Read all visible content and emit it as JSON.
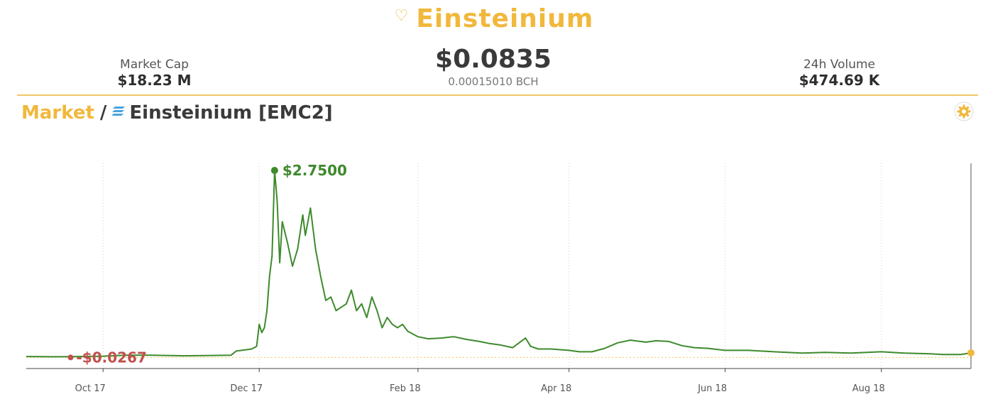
{
  "header": {
    "coin_name": "Einsteinium",
    "favorite_icon": "heart-outline-icon",
    "market_cap_label": "Market Cap",
    "market_cap_value": "$18.23 M",
    "price": "$0.0835",
    "price_bch": "0.00015010 BCH",
    "volume_label": "24h Volume",
    "volume_value": "$474.69 K"
  },
  "breadcrumb": {
    "market": "Market",
    "separator": "/",
    "coin_icon": "einsteinium-logo-icon",
    "coin": "Einsteinium [EMC2]"
  },
  "toolbar": {
    "settings_icon": "gear-icon"
  },
  "colors": {
    "accent": "#f1b83c",
    "line": "#3e8a2c",
    "min": "#c0504d",
    "text": "#3a3a3a"
  },
  "chart_data": {
    "type": "line",
    "x_ticks": [
      "Oct 17",
      "Dec 17",
      "Feb 18",
      "Apr 18",
      "Jun 18",
      "Aug 18"
    ],
    "x_tick_dates": [
      "2017-10-01",
      "2017-12-01",
      "2018-02-01",
      "2018-04-01",
      "2018-06-01",
      "2018-08-01"
    ],
    "x_range": [
      "2017-09-01",
      "2018-09-05"
    ],
    "ylim": [
      0,
      3
    ],
    "grid": "vertical dotted",
    "max_label": "$2.7500",
    "min_label": "$0.0267",
    "max_point": {
      "x": "2017-12-07",
      "y": 2.75
    },
    "min_point": {
      "x": "2017-09-15",
      "y": 0.0267
    },
    "last_point": {
      "x": "2018-09-05",
      "y": 0.0835
    },
    "series": [
      {
        "x": [
          "2017-09-01",
          "2017-09-10",
          "2017-09-15",
          "2017-09-22",
          "2017-10-01",
          "2017-10-10",
          "2017-10-20",
          "2017-11-01",
          "2017-11-10",
          "2017-11-20",
          "2017-11-22",
          "2017-11-26",
          "2017-11-28",
          "2017-11-30",
          "2017-12-01",
          "2017-12-02",
          "2017-12-03",
          "2017-12-04",
          "2017-12-05",
          "2017-12-06",
          "2017-12-07",
          "2017-12-08",
          "2017-12-09",
          "2017-12-10",
          "2017-12-12",
          "2017-12-14",
          "2017-12-16",
          "2017-12-17",
          "2017-12-18",
          "2017-12-19",
          "2017-12-20",
          "2017-12-21",
          "2017-12-22",
          "2017-12-23",
          "2017-12-25",
          "2017-12-27",
          "2017-12-29",
          "2017-12-31",
          "2018-01-02",
          "2018-01-04",
          "2018-01-06",
          "2018-01-08",
          "2018-01-10",
          "2018-01-12",
          "2018-01-14",
          "2018-01-16",
          "2018-01-18",
          "2018-01-20",
          "2018-01-22",
          "2018-01-24",
          "2018-01-26",
          "2018-01-28",
          "2018-02-01",
          "2018-02-05",
          "2018-02-10",
          "2018-02-15",
          "2018-02-20",
          "2018-02-25",
          "2018-03-01",
          "2018-03-05",
          "2018-03-10",
          "2018-03-15",
          "2018-03-17",
          "2018-03-20",
          "2018-03-25",
          "2018-04-01",
          "2018-04-05",
          "2018-04-10",
          "2018-04-15",
          "2018-04-20",
          "2018-04-25",
          "2018-05-01",
          "2018-05-05",
          "2018-05-10",
          "2018-05-15",
          "2018-05-20",
          "2018-05-25",
          "2018-06-01",
          "2018-06-10",
          "2018-06-20",
          "2018-07-01",
          "2018-07-10",
          "2018-07-20",
          "2018-08-01",
          "2018-08-10",
          "2018-08-20",
          "2018-08-25",
          "2018-09-01",
          "2018-09-05"
        ],
        "values": [
          0.03,
          0.027,
          0.0267,
          0.03,
          0.035,
          0.05,
          0.05,
          0.04,
          0.045,
          0.05,
          0.11,
          0.13,
          0.14,
          0.18,
          0.5,
          0.38,
          0.45,
          0.7,
          1.2,
          1.5,
          2.75,
          2.3,
          1.4,
          2.0,
          1.7,
          1.35,
          1.6,
          1.85,
          2.1,
          1.8,
          2.0,
          2.2,
          1.9,
          1.6,
          1.2,
          0.85,
          0.9,
          0.7,
          0.75,
          0.8,
          1.0,
          0.7,
          0.8,
          0.6,
          0.9,
          0.7,
          0.45,
          0.6,
          0.5,
          0.45,
          0.5,
          0.4,
          0.32,
          0.29,
          0.3,
          0.32,
          0.28,
          0.25,
          0.22,
          0.2,
          0.16,
          0.3,
          0.18,
          0.14,
          0.14,
          0.12,
          0.1,
          0.1,
          0.15,
          0.23,
          0.27,
          0.24,
          0.26,
          0.25,
          0.19,
          0.16,
          0.15,
          0.12,
          0.12,
          0.1,
          0.08,
          0.09,
          0.08,
          0.1,
          0.08,
          0.07,
          0.06,
          0.06,
          0.0835
        ]
      }
    ]
  }
}
